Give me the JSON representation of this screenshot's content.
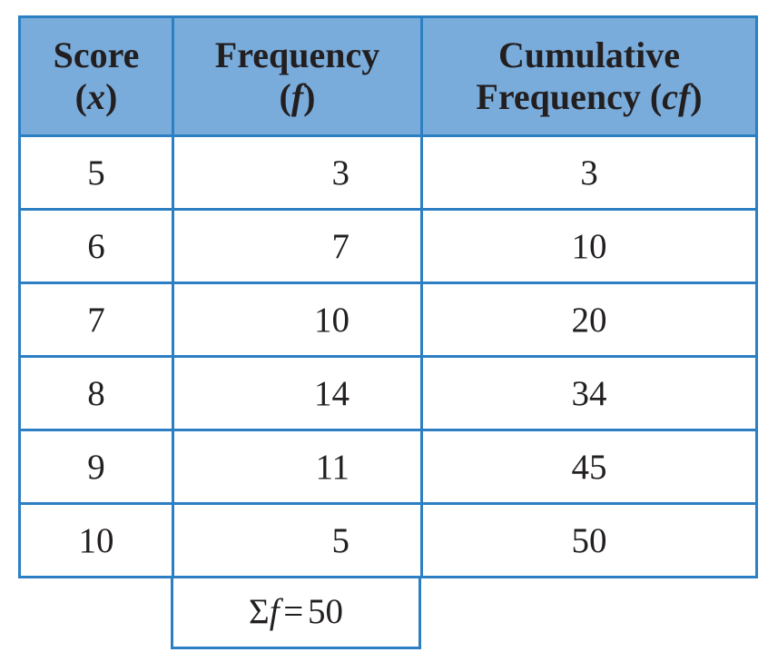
{
  "table": {
    "header": [
      {
        "lines": [
          [
            {
              "text": "Score"
            }
          ],
          [
            {
              "text": "("
            },
            {
              "text": "x",
              "italic": true
            },
            {
              "text": ")"
            }
          ]
        ]
      },
      {
        "lines": [
          [
            {
              "text": "Frequency"
            }
          ],
          [
            {
              "text": "("
            },
            {
              "text": "f",
              "italic": true
            },
            {
              "text": ")"
            }
          ]
        ]
      },
      {
        "lines": [
          [
            {
              "text": "Cumulative"
            }
          ],
          [
            {
              "text": "Frequency"
            },
            {
              "text": "("
            },
            {
              "text": "cf",
              "italic": true
            },
            {
              "text": ")"
            }
          ]
        ]
      }
    ],
    "rows": [
      [
        5,
        3,
        3
      ],
      [
        6,
        7,
        10
      ],
      [
        7,
        10,
        20
      ],
      [
        8,
        14,
        34
      ],
      [
        9,
        11,
        45
      ],
      [
        10,
        5,
        50
      ]
    ],
    "footer": {
      "parts": [
        {
          "text": "Σ"
        },
        {
          "text": "f",
          "italic": true
        },
        {
          "text": "="
        },
        {
          "text": 50
        }
      ]
    }
  }
}
